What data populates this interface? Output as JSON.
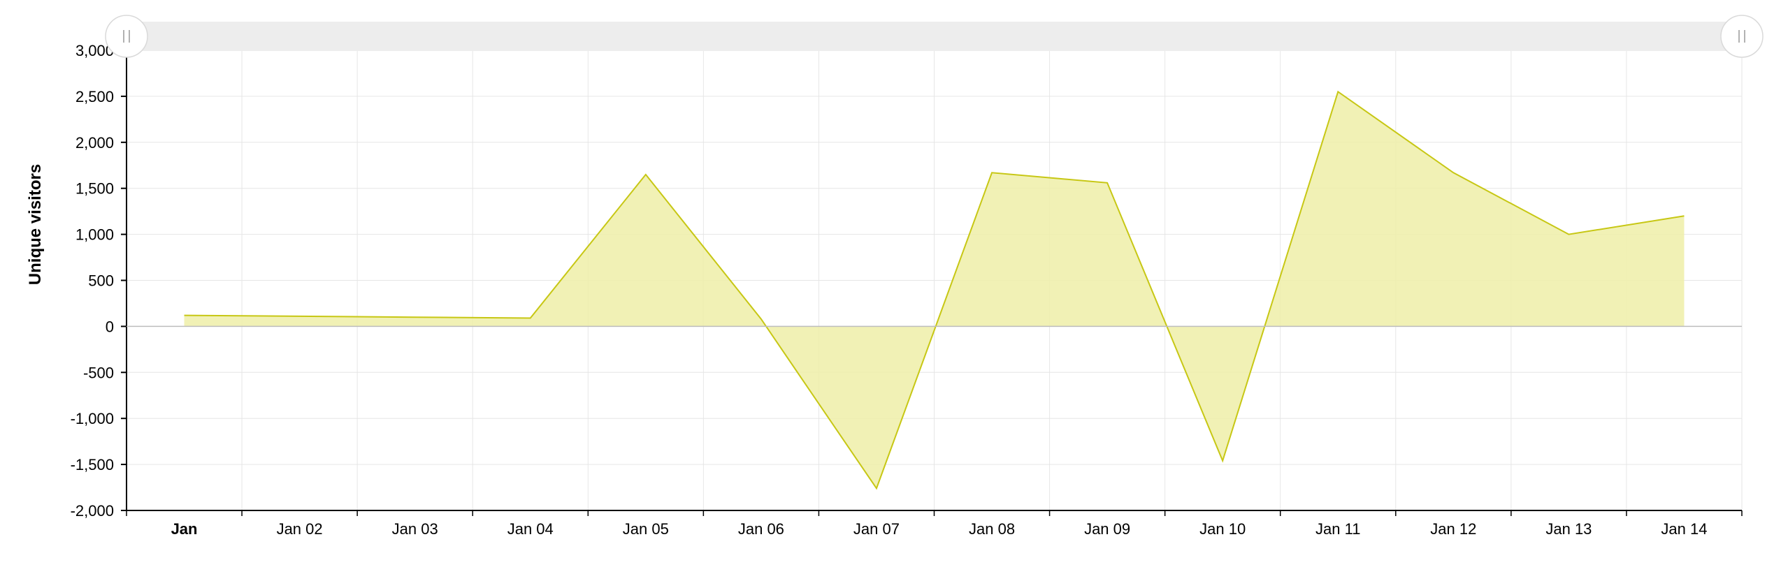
{
  "chart_data": {
    "type": "area",
    "ylabel": "Unique visitors",
    "xlabel": "",
    "ylim": [
      -2000,
      3000
    ],
    "yticks": [
      3000,
      2500,
      2000,
      1500,
      1000,
      500,
      0,
      -500,
      -1000,
      -1500,
      -2000
    ],
    "ytick_labels": [
      "3,000",
      "2,500",
      "2,000",
      "1,500",
      "1,000",
      "500",
      "0",
      "-500",
      "-1,000",
      "-1,500",
      "-2,000"
    ],
    "categories": [
      "Jan",
      "Jan 02",
      "Jan 03",
      "Jan 04",
      "Jan 05",
      "Jan 06",
      "Jan 07",
      "Jan 08",
      "Jan 09",
      "Jan 10",
      "Jan 11",
      "Jan 12",
      "Jan 13",
      "Jan 14"
    ],
    "series": [
      {
        "values": [
          120,
          110,
          100,
          90,
          1650,
          80,
          -1760,
          1670,
          1560,
          -1460,
          2550,
          1670,
          1000,
          1200
        ]
      }
    ],
    "grid": true,
    "scrollbar": true,
    "colors": {
      "line": "#c7c714",
      "fill": "#eeeea8",
      "grid": "#e6e6e6",
      "scrollbar": "#ededed"
    }
  }
}
